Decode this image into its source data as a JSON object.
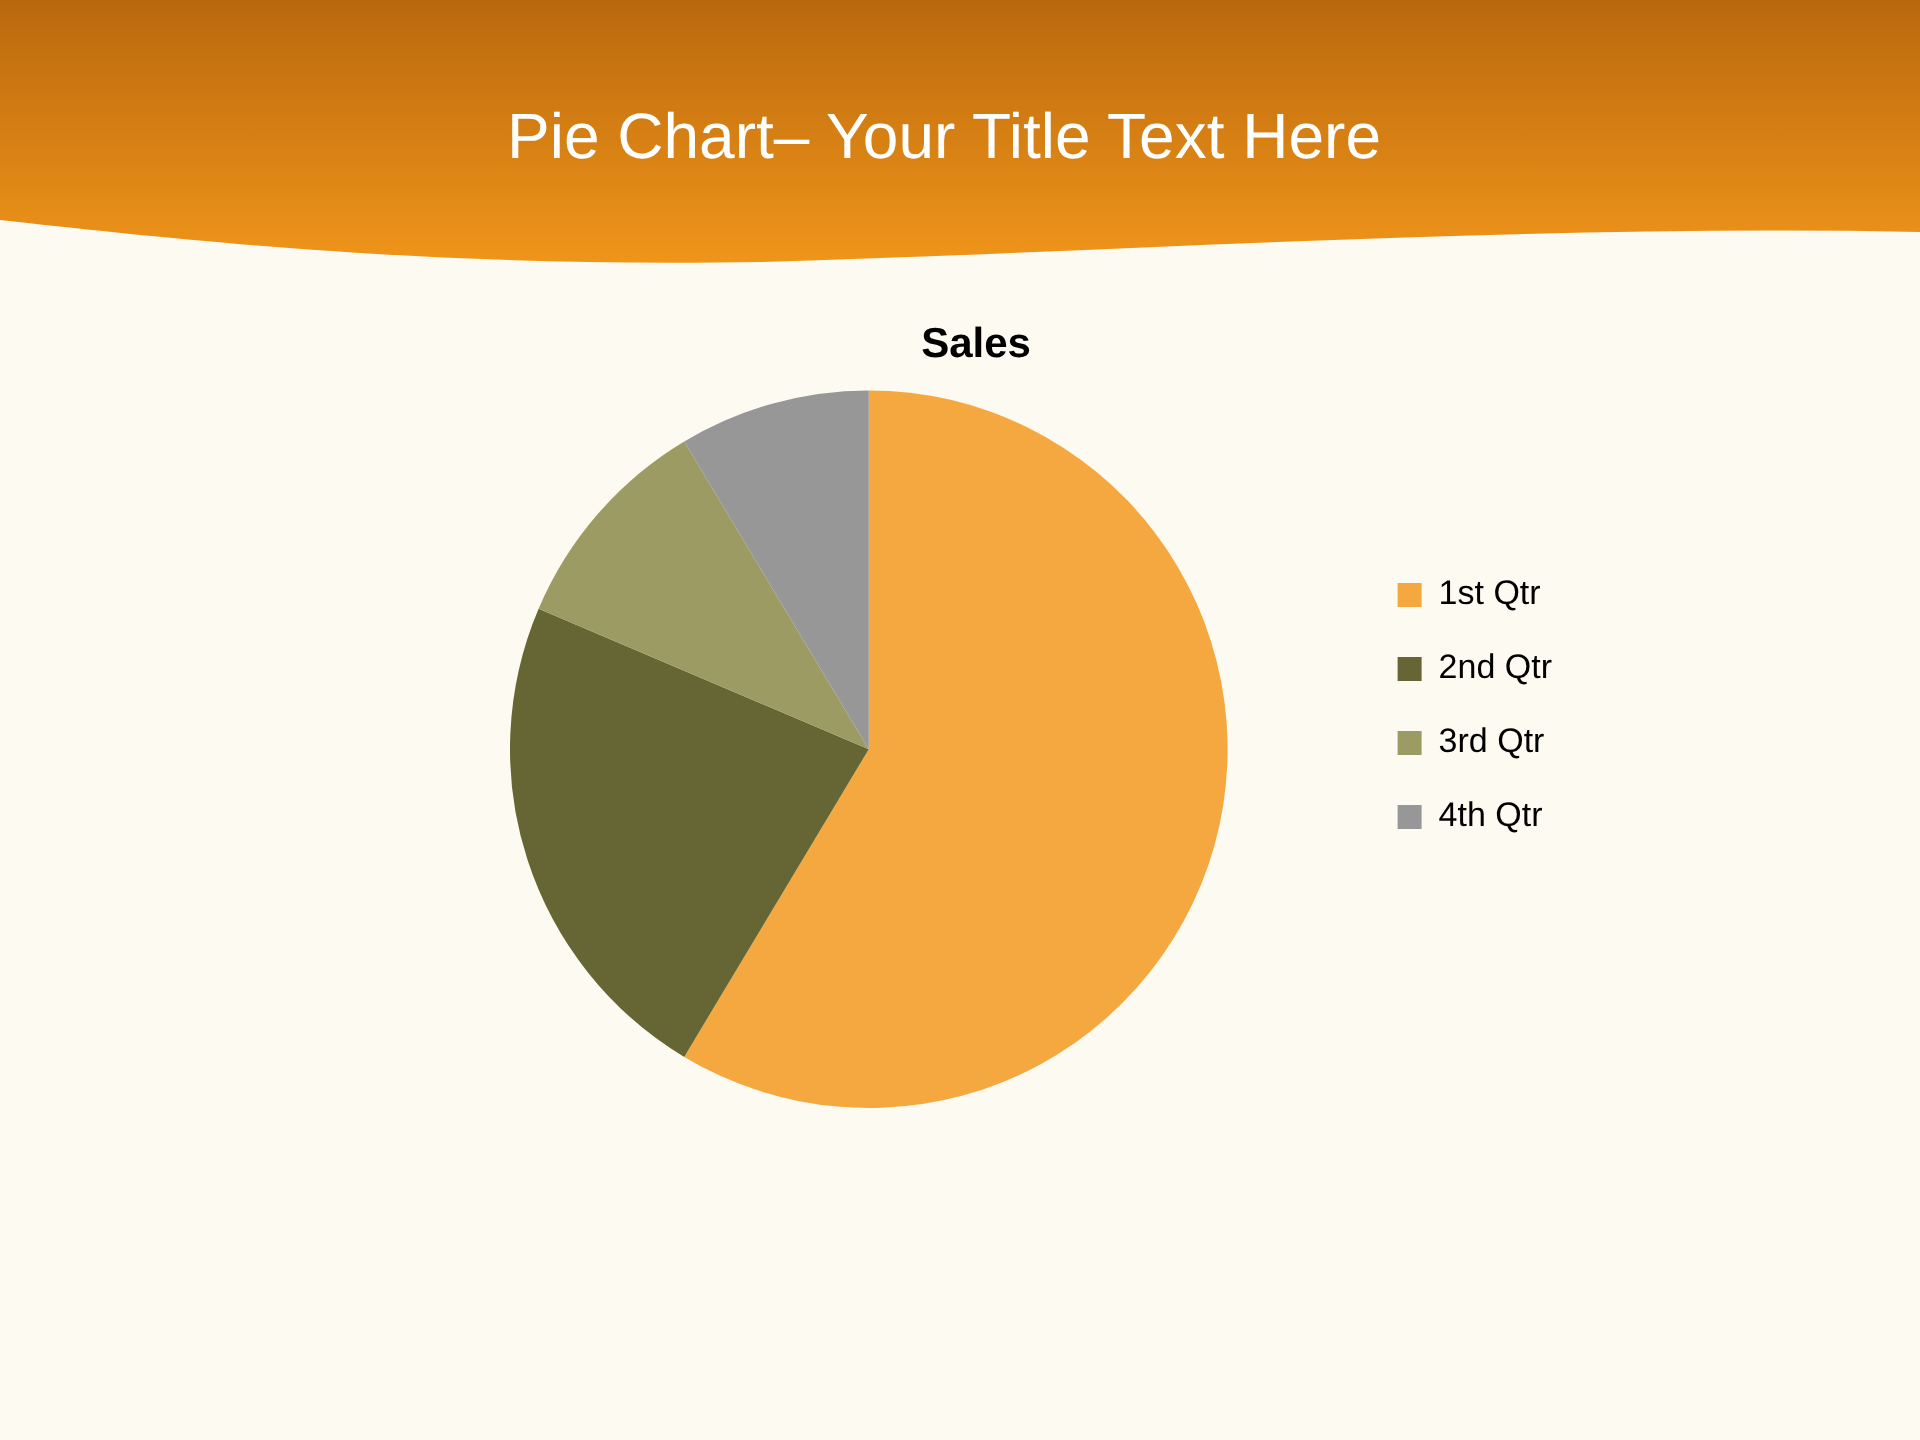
{
  "chart_data": {
    "type": "pie",
    "title": "Pie Chart– Your Title Text Here",
    "subtitle": "Sales",
    "categories": [
      "1st Qtr",
      "2nd Qtr",
      "3rd Qtr",
      "4th Qtr"
    ],
    "values": [
      58.6,
      22.8,
      10.0,
      8.6
    ],
    "colors": [
      "#f5a840",
      "#666634",
      "#9c9b64",
      "#979797"
    ],
    "legend": "right"
  }
}
